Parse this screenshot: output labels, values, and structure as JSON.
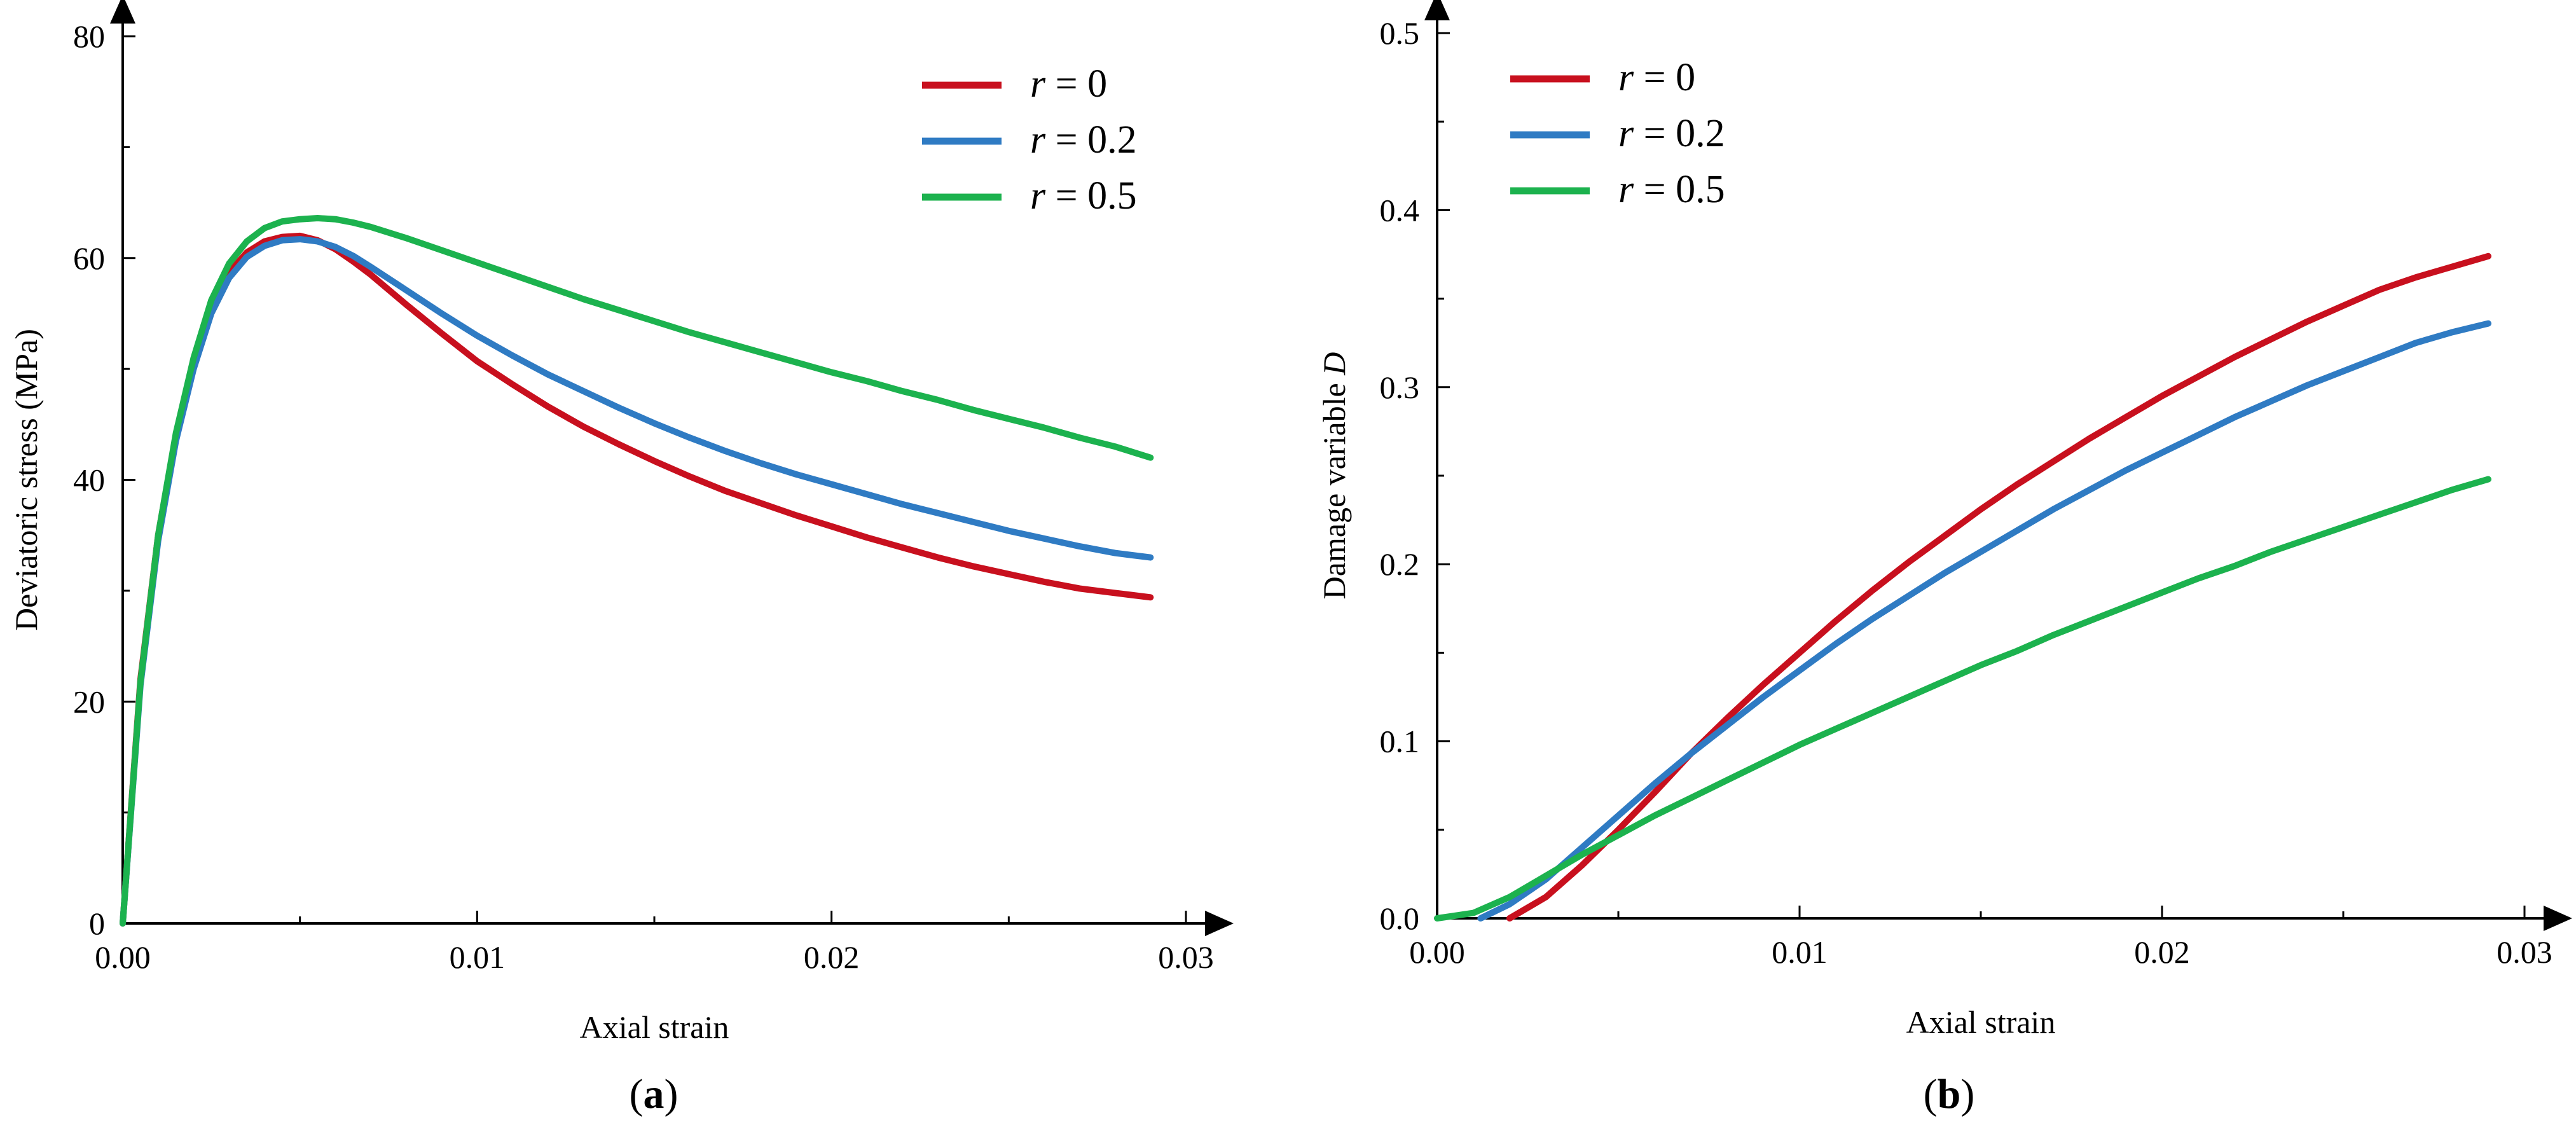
{
  "colors": {
    "r0": "#c8101e",
    "r02": "#2f7bc3",
    "r05": "#1cb24e",
    "axis": "#000000"
  },
  "chart_data": [
    {
      "type": "line",
      "panel_label": "a",
      "xlabel": "Axial strain",
      "ylabel": "Deviatoric stress (MPa)",
      "xlim": [
        0,
        0.03
      ],
      "ylim": [
        0,
        80
      ],
      "xticks": [
        0,
        0.01,
        0.02,
        0.03
      ],
      "xtick_labels": [
        "0.00",
        "0.01",
        "0.02",
        "0.03"
      ],
      "yticks": [
        0,
        20,
        40,
        60,
        80
      ],
      "ytick_labels": [
        "0",
        "20",
        "40",
        "60",
        "80"
      ],
      "legend_position": "top-right",
      "series": [
        {
          "var": "r",
          "rest": " = 0",
          "color": "#c8101e",
          "x": [
            0,
            0.0005,
            0.001,
            0.0015,
            0.002,
            0.0025,
            0.003,
            0.0035,
            0.004,
            0.0045,
            0.005,
            0.0055,
            0.006,
            0.0065,
            0.007,
            0.008,
            0.009,
            0.01,
            0.011,
            0.012,
            0.013,
            0.014,
            0.015,
            0.016,
            0.017,
            0.018,
            0.019,
            0.02,
            0.021,
            0.022,
            0.023,
            0.024,
            0.025,
            0.026,
            0.027,
            0.028,
            0.029
          ],
          "y": [
            0,
            22,
            35,
            44,
            50.5,
            55.5,
            58.7,
            60.5,
            61.5,
            61.9,
            62.0,
            61.6,
            60.8,
            59.7,
            58.5,
            55.8,
            53.2,
            50.7,
            48.6,
            46.6,
            44.8,
            43.2,
            41.7,
            40.3,
            39.0,
            37.9,
            36.8,
            35.8,
            34.8,
            33.9,
            33.0,
            32.2,
            31.5,
            30.8,
            30.2,
            29.8,
            29.4
          ]
        },
        {
          "var": "r",
          "rest": " = 0.2",
          "color": "#2f7bc3",
          "x": [
            0,
            0.0005,
            0.001,
            0.0015,
            0.002,
            0.0025,
            0.003,
            0.0035,
            0.004,
            0.0045,
            0.005,
            0.0055,
            0.006,
            0.0065,
            0.007,
            0.008,
            0.009,
            0.01,
            0.011,
            0.012,
            0.013,
            0.014,
            0.015,
            0.016,
            0.017,
            0.018,
            0.019,
            0.02,
            0.021,
            0.022,
            0.023,
            0.024,
            0.025,
            0.026,
            0.027,
            0.028,
            0.029
          ],
          "y": [
            0,
            21.5,
            34.5,
            43.5,
            50,
            55,
            58.2,
            60.1,
            61.1,
            61.6,
            61.7,
            61.5,
            61.0,
            60.2,
            59.2,
            57.1,
            55.0,
            53.0,
            51.2,
            49.5,
            48.0,
            46.5,
            45.1,
            43.8,
            42.6,
            41.5,
            40.5,
            39.6,
            38.7,
            37.8,
            37.0,
            36.2,
            35.4,
            34.7,
            34.0,
            33.4,
            33.0
          ]
        },
        {
          "var": "r",
          "rest": " = 0.5",
          "color": "#1cb24e",
          "x": [
            0,
            0.0005,
            0.001,
            0.0015,
            0.002,
            0.0025,
            0.003,
            0.0035,
            0.004,
            0.0045,
            0.005,
            0.0055,
            0.006,
            0.0065,
            0.007,
            0.008,
            0.009,
            0.01,
            0.011,
            0.012,
            0.013,
            0.014,
            0.015,
            0.016,
            0.017,
            0.018,
            0.019,
            0.02,
            0.021,
            0.022,
            0.023,
            0.024,
            0.025,
            0.026,
            0.027,
            0.028,
            0.029
          ],
          "y": [
            0,
            21.8,
            35,
            44.2,
            51,
            56.2,
            59.5,
            61.5,
            62.7,
            63.3,
            63.5,
            63.6,
            63.5,
            63.2,
            62.8,
            61.8,
            60.7,
            59.6,
            58.5,
            57.4,
            56.3,
            55.3,
            54.3,
            53.3,
            52.4,
            51.5,
            50.6,
            49.7,
            48.9,
            48.0,
            47.2,
            46.3,
            45.5,
            44.7,
            43.8,
            43.0,
            42.0
          ]
        }
      ]
    },
    {
      "type": "line",
      "panel_label": "b",
      "xlabel": "Axial strain",
      "ylabel_main": "Damage variable ",
      "ylabel_var": "D",
      "xlim": [
        0,
        0.03
      ],
      "ylim": [
        0,
        0.5
      ],
      "xticks": [
        0,
        0.01,
        0.02,
        0.03
      ],
      "xtick_labels": [
        "0.00",
        "0.01",
        "0.02",
        "0.03"
      ],
      "yticks": [
        0,
        0.1,
        0.2,
        0.3,
        0.4,
        0.5
      ],
      "ytick_labels": [
        "0.0",
        "0.1",
        "0.2",
        "0.3",
        "0.4",
        "0.5"
      ],
      "legend_position": "top-left",
      "series": [
        {
          "var": "r",
          "rest": " = 0",
          "color": "#c8101e",
          "x": [
            0.002,
            0.003,
            0.004,
            0.005,
            0.006,
            0.007,
            0.008,
            0.009,
            0.01,
            0.011,
            0.012,
            0.013,
            0.014,
            0.015,
            0.016,
            0.017,
            0.018,
            0.019,
            0.02,
            0.021,
            0.022,
            0.023,
            0.024,
            0.025,
            0.026,
            0.027,
            0.028,
            0.029
          ],
          "y": [
            0,
            0.012,
            0.03,
            0.05,
            0.071,
            0.093,
            0.113,
            0.132,
            0.15,
            0.168,
            0.185,
            0.201,
            0.216,
            0.231,
            0.245,
            0.258,
            0.271,
            0.283,
            0.295,
            0.306,
            0.317,
            0.327,
            0.337,
            0.346,
            0.355,
            0.362,
            0.368,
            0.374
          ]
        },
        {
          "var": "r",
          "rest": " = 0.2",
          "color": "#2f7bc3",
          "x": [
            0.0012,
            0.002,
            0.003,
            0.004,
            0.005,
            0.006,
            0.007,
            0.008,
            0.009,
            0.01,
            0.011,
            0.012,
            0.013,
            0.014,
            0.015,
            0.016,
            0.017,
            0.018,
            0.019,
            0.02,
            0.021,
            0.022,
            0.023,
            0.024,
            0.025,
            0.026,
            0.027,
            0.028,
            0.029
          ],
          "y": [
            0,
            0.008,
            0.022,
            0.04,
            0.058,
            0.076,
            0.093,
            0.109,
            0.125,
            0.14,
            0.155,
            0.169,
            0.182,
            0.195,
            0.207,
            0.219,
            0.231,
            0.242,
            0.253,
            0.263,
            0.273,
            0.283,
            0.292,
            0.301,
            0.309,
            0.317,
            0.325,
            0.331,
            0.336
          ]
        },
        {
          "var": "r",
          "rest": " = 0.5",
          "color": "#1cb24e",
          "x": [
            0,
            0.001,
            0.002,
            0.003,
            0.004,
            0.005,
            0.006,
            0.007,
            0.008,
            0.009,
            0.01,
            0.011,
            0.012,
            0.013,
            0.014,
            0.015,
            0.016,
            0.017,
            0.018,
            0.019,
            0.02,
            0.021,
            0.022,
            0.023,
            0.024,
            0.025,
            0.026,
            0.027,
            0.028,
            0.029
          ],
          "y": [
            0,
            0.003,
            0.012,
            0.024,
            0.036,
            0.047,
            0.058,
            0.068,
            0.078,
            0.088,
            0.098,
            0.107,
            0.116,
            0.125,
            0.134,
            0.143,
            0.151,
            0.16,
            0.168,
            0.176,
            0.184,
            0.192,
            0.199,
            0.207,
            0.214,
            0.221,
            0.228,
            0.235,
            0.242,
            0.248
          ]
        }
      ]
    }
  ]
}
